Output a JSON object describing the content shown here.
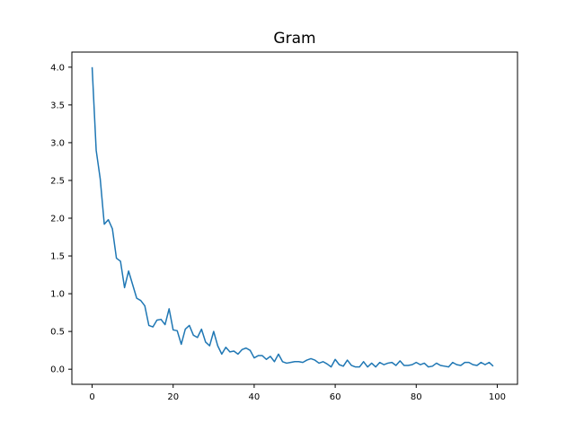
{
  "chart_data": {
    "type": "line",
    "title": "Gram",
    "xlabel": "",
    "ylabel": "",
    "xlim": [
      -5,
      105
    ],
    "ylim": [
      -0.2,
      4.2
    ],
    "xticks": [
      0,
      20,
      40,
      60,
      80,
      100
    ],
    "yticks": [
      0.0,
      0.5,
      1.0,
      1.5,
      2.0,
      2.5,
      3.0,
      3.5,
      4.0
    ],
    "xtick_labels": [
      "0",
      "20",
      "40",
      "60",
      "80",
      "100"
    ],
    "ytick_labels": [
      "0.0",
      "0.5",
      "1.0",
      "1.5",
      "2.0",
      "2.5",
      "3.0",
      "3.5",
      "4.0"
    ],
    "grid": false,
    "series": [
      {
        "color": "#1f77b4",
        "x": [
          0,
          1,
          2,
          3,
          4,
          5,
          6,
          7,
          8,
          9,
          10,
          11,
          12,
          13,
          14,
          15,
          16,
          17,
          18,
          19,
          20,
          21,
          22,
          23,
          24,
          25,
          26,
          27,
          28,
          29,
          30,
          31,
          32,
          33,
          34,
          35,
          36,
          37,
          38,
          39,
          40,
          41,
          42,
          43,
          44,
          45,
          46,
          47,
          48,
          49,
          50,
          51,
          52,
          53,
          54,
          55,
          56,
          57,
          58,
          59,
          60,
          61,
          62,
          63,
          64,
          65,
          66,
          67,
          68,
          69,
          70,
          71,
          72,
          73,
          74,
          75,
          76,
          77,
          78,
          79,
          80,
          81,
          82,
          83,
          84,
          85,
          86,
          87,
          88,
          89,
          90,
          91,
          92,
          93,
          94,
          95,
          96,
          97,
          98,
          99
        ],
        "y": [
          4.0,
          2.9,
          2.52,
          1.92,
          1.98,
          1.86,
          1.47,
          1.43,
          1.08,
          1.3,
          1.12,
          0.94,
          0.91,
          0.84,
          0.58,
          0.56,
          0.65,
          0.66,
          0.59,
          0.8,
          0.52,
          0.51,
          0.33,
          0.53,
          0.58,
          0.45,
          0.42,
          0.53,
          0.36,
          0.31,
          0.5,
          0.31,
          0.2,
          0.29,
          0.23,
          0.24,
          0.2,
          0.26,
          0.28,
          0.25,
          0.15,
          0.18,
          0.18,
          0.13,
          0.17,
          0.1,
          0.2,
          0.1,
          0.08,
          0.09,
          0.1,
          0.1,
          0.09,
          0.12,
          0.14,
          0.12,
          0.08,
          0.1,
          0.07,
          0.03,
          0.13,
          0.06,
          0.04,
          0.12,
          0.05,
          0.03,
          0.03,
          0.1,
          0.03,
          0.08,
          0.03,
          0.09,
          0.06,
          0.08,
          0.09,
          0.05,
          0.11,
          0.05,
          0.05,
          0.06,
          0.09,
          0.06,
          0.08,
          0.03,
          0.04,
          0.08,
          0.05,
          0.04,
          0.03,
          0.09,
          0.06,
          0.05,
          0.09,
          0.09,
          0.06,
          0.05,
          0.09,
          0.06,
          0.09,
          0.04
        ]
      }
    ]
  }
}
